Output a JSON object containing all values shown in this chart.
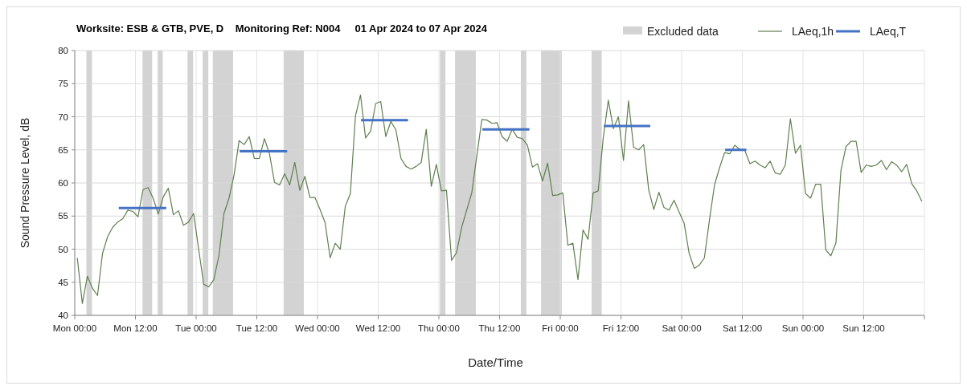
{
  "chart_data": {
    "type": "line",
    "title": "Worksite: ESB & GTB, PVE, D    Monitoring Ref: N004     01 Apr 2024 to 07 Apr 2024",
    "xlabel": "Date/Time",
    "ylabel": "Sound Pressure Level, dB",
    "xlim": [
      "2024-04-01T00:00",
      "2024-04-08T00:00"
    ],
    "ylim": [
      40,
      80
    ],
    "xticks": [
      {
        "value": "2024-04-01T00:00",
        "label": "Mon 00:00"
      },
      {
        "value": "2024-04-01T12:00",
        "label": "Mon 12:00"
      },
      {
        "value": "2024-04-02T00:00",
        "label": "Tue 00:00"
      },
      {
        "value": "2024-04-02T12:00",
        "label": "Tue 12:00"
      },
      {
        "value": "2024-04-03T00:00",
        "label": "Wed 00:00"
      },
      {
        "value": "2024-04-03T12:00",
        "label": "Wed 12:00"
      },
      {
        "value": "2024-04-04T00:00",
        "label": "Thu 00:00"
      },
      {
        "value": "2024-04-04T12:00",
        "label": "Thu 12:00"
      },
      {
        "value": "2024-04-05T00:00",
        "label": "Fri 00:00"
      },
      {
        "value": "2024-04-05T12:00",
        "label": "Fri 12:00"
      },
      {
        "value": "2024-04-06T00:00",
        "label": "Sat 00:00"
      },
      {
        "value": "2024-04-06T12:00",
        "label": "Sat 12:00"
      },
      {
        "value": "2024-04-07T00:00",
        "label": "Sun 00:00"
      },
      {
        "value": "2024-04-07T12:00",
        "label": "Sun 12:00"
      },
      {
        "value": "2024-04-08T00:00",
        "label": null
      }
    ],
    "yticks": [
      40,
      45,
      50,
      55,
      60,
      65,
      70,
      75,
      80
    ],
    "grid": true,
    "legend": "top right",
    "marker": "none",
    "line_style": "solid",
    "bands": [
      {
        "axis": "x",
        "from": "2024-04-01T02:18",
        "to": "2024-04-01T03:24",
        "label": "Excluded data",
        "color": "#d3d3d3"
      },
      {
        "axis": "x",
        "from": "2024-04-01T13:24",
        "to": "2024-04-01T15:18",
        "color": "#d3d3d3"
      },
      {
        "axis": "x",
        "from": "2024-04-01T16:24",
        "to": "2024-04-01T17:24",
        "color": "#d3d3d3"
      },
      {
        "axis": "x",
        "from": "2024-04-01T22:18",
        "to": "2024-04-01T23:24",
        "color": "#d3d3d3"
      },
      {
        "axis": "x",
        "from": "2024-04-02T01:18",
        "to": "2024-04-02T02:24",
        "color": "#d3d3d3"
      },
      {
        "axis": "x",
        "from": "2024-04-02T03:18",
        "to": "2024-04-02T07:18",
        "color": "#d3d3d3"
      },
      {
        "axis": "x",
        "from": "2024-04-02T17:18",
        "to": "2024-04-02T21:18",
        "color": "#d3d3d3"
      },
      {
        "axis": "x",
        "from": "2024-04-04T00:12",
        "to": "2024-04-04T01:18",
        "color": "#d3d3d3"
      },
      {
        "axis": "x",
        "from": "2024-04-04T03:12",
        "to": "2024-04-04T07:18",
        "color": "#d3d3d3"
      },
      {
        "axis": "x",
        "from": "2024-04-04T16:12",
        "to": "2024-04-04T17:18",
        "color": "#d3d3d3"
      },
      {
        "axis": "x",
        "from": "2024-04-04T20:12",
        "to": "2024-04-05T00:18",
        "color": "#d3d3d3"
      },
      {
        "axis": "x",
        "from": "2024-04-05T06:12",
        "to": "2024-04-05T08:12",
        "color": "#d3d3d3"
      }
    ],
    "x": [
      "2024-04-01T00:30",
      "2024-04-01T01:30",
      "2024-04-01T02:30",
      "2024-04-01T03:30",
      "2024-04-01T04:30",
      "2024-04-01T05:30",
      "2024-04-01T06:30",
      "2024-04-01T07:30",
      "2024-04-01T08:30",
      "2024-04-01T09:30",
      "2024-04-01T10:30",
      "2024-04-01T11:30",
      "2024-04-01T12:30",
      "2024-04-01T13:30",
      "2024-04-01T14:30",
      "2024-04-01T15:30",
      "2024-04-01T16:30",
      "2024-04-01T17:30",
      "2024-04-01T18:30",
      "2024-04-01T19:30",
      "2024-04-01T20:30",
      "2024-04-01T21:30",
      "2024-04-01T22:30",
      "2024-04-01T23:30",
      "2024-04-02T00:30",
      "2024-04-02T01:30",
      "2024-04-02T02:30",
      "2024-04-02T03:30",
      "2024-04-02T04:30",
      "2024-04-02T05:30",
      "2024-04-02T06:30",
      "2024-04-02T07:30",
      "2024-04-02T08:30",
      "2024-04-02T09:30",
      "2024-04-02T10:30",
      "2024-04-02T11:30",
      "2024-04-02T12:30",
      "2024-04-02T13:30",
      "2024-04-02T14:30",
      "2024-04-02T15:30",
      "2024-04-02T16:30",
      "2024-04-02T17:30",
      "2024-04-02T18:30",
      "2024-04-02T19:30",
      "2024-04-02T20:30",
      "2024-04-02T21:30",
      "2024-04-02T22:30",
      "2024-04-02T23:30",
      "2024-04-03T00:30",
      "2024-04-03T01:30",
      "2024-04-03T02:30",
      "2024-04-03T03:30",
      "2024-04-03T04:30",
      "2024-04-03T05:30",
      "2024-04-03T06:30",
      "2024-04-03T07:30",
      "2024-04-03T08:30",
      "2024-04-03T09:30",
      "2024-04-03T10:30",
      "2024-04-03T11:30",
      "2024-04-03T12:30",
      "2024-04-03T13:30",
      "2024-04-03T14:30",
      "2024-04-03T15:30",
      "2024-04-03T16:30",
      "2024-04-03T17:30",
      "2024-04-03T18:30",
      "2024-04-03T19:30",
      "2024-04-03T20:30",
      "2024-04-03T21:30",
      "2024-04-03T22:30",
      "2024-04-03T23:30",
      "2024-04-04T00:30",
      "2024-04-04T01:30",
      "2024-04-04T02:30",
      "2024-04-04T03:30",
      "2024-04-04T04:30",
      "2024-04-04T05:30",
      "2024-04-04T06:30",
      "2024-04-04T07:30",
      "2024-04-04T08:30",
      "2024-04-04T09:30",
      "2024-04-04T10:30",
      "2024-04-04T11:30",
      "2024-04-04T12:30",
      "2024-04-04T13:30",
      "2024-04-04T14:30",
      "2024-04-04T15:30",
      "2024-04-04T16:30",
      "2024-04-04T17:30",
      "2024-04-04T18:30",
      "2024-04-04T19:30",
      "2024-04-04T20:30",
      "2024-04-04T21:30",
      "2024-04-04T22:30",
      "2024-04-04T23:30",
      "2024-04-05T00:30",
      "2024-04-05T01:30",
      "2024-04-05T02:30",
      "2024-04-05T03:30",
      "2024-04-05T04:30",
      "2024-04-05T05:30",
      "2024-04-05T06:30",
      "2024-04-05T07:30",
      "2024-04-05T08:30",
      "2024-04-05T09:30",
      "2024-04-05T10:30",
      "2024-04-05T11:30",
      "2024-04-05T12:30",
      "2024-04-05T13:30",
      "2024-04-05T14:30",
      "2024-04-05T15:30",
      "2024-04-05T16:30",
      "2024-04-05T17:30",
      "2024-04-05T18:30",
      "2024-04-05T19:30",
      "2024-04-05T20:30",
      "2024-04-05T21:30",
      "2024-04-05T22:30",
      "2024-04-05T23:30",
      "2024-04-06T00:30",
      "2024-04-06T01:30",
      "2024-04-06T02:30",
      "2024-04-06T03:30",
      "2024-04-06T04:30",
      "2024-04-06T05:30",
      "2024-04-06T06:30",
      "2024-04-06T07:30",
      "2024-04-06T08:30",
      "2024-04-06T09:30",
      "2024-04-06T10:30",
      "2024-04-06T11:30",
      "2024-04-06T12:30",
      "2024-04-06T13:30",
      "2024-04-06T14:30",
      "2024-04-06T15:30",
      "2024-04-06T16:30",
      "2024-04-06T17:30",
      "2024-04-06T18:30",
      "2024-04-06T19:30",
      "2024-04-06T20:30",
      "2024-04-06T21:30",
      "2024-04-06T22:30",
      "2024-04-06T23:30",
      "2024-04-07T00:30",
      "2024-04-07T01:30",
      "2024-04-07T02:30",
      "2024-04-07T03:30",
      "2024-04-07T04:30",
      "2024-04-07T05:30",
      "2024-04-07T06:30",
      "2024-04-07T07:30",
      "2024-04-07T08:30",
      "2024-04-07T09:30",
      "2024-04-07T10:30",
      "2024-04-07T11:30",
      "2024-04-07T12:30",
      "2024-04-07T13:30",
      "2024-04-07T14:30",
      "2024-04-07T15:30",
      "2024-04-07T16:30",
      "2024-04-07T17:30",
      "2024-04-07T18:30",
      "2024-04-07T19:30",
      "2024-04-07T20:30",
      "2024-04-07T21:30",
      "2024-04-07T22:30",
      "2024-04-07T23:30"
    ],
    "series": [
      {
        "name": "LAeq,1h",
        "color": "#5f7f4f",
        "values": [
          48.7,
          41.8,
          45.9,
          44.1,
          43.0,
          49.4,
          51.9,
          53.3,
          54.1,
          54.6,
          55.9,
          55.7,
          54.9,
          59.0,
          59.3,
          57.7,
          55.3,
          57.9,
          59.2,
          55.2,
          55.8,
          53.6,
          54.1,
          55.4,
          50.0,
          44.7,
          44.3,
          45.4,
          49.0,
          55.4,
          57.7,
          61.2,
          66.4,
          65.8,
          67.0,
          63.7,
          63.7,
          66.7,
          64.4,
          60.1,
          59.7,
          61.4,
          59.7,
          63.1,
          58.9,
          61.0,
          57.8,
          57.8,
          56.0,
          54.0,
          48.7,
          50.9,
          50.0,
          56.5,
          58.4,
          70.1,
          73.3,
          66.8,
          67.8,
          72.0,
          72.3,
          67.0,
          69.3,
          68.0,
          63.7,
          62.5,
          62.1,
          62.5,
          63.1,
          68.1,
          59.5,
          62.8,
          58.8,
          58.9,
          48.3,
          49.5,
          53.3,
          55.9,
          58.5,
          64.1,
          69.6,
          69.5,
          69.0,
          69.1,
          67.0,
          66.3,
          68.1,
          66.9,
          66.7,
          65.7,
          62.4,
          62.9,
          60.3,
          63.0,
          58.1,
          58.2,
          58.5,
          50.6,
          50.9,
          45.4,
          52.9,
          51.5,
          58.5,
          58.8,
          66.8,
          72.5,
          68.2,
          70.0,
          63.4,
          72.4,
          65.4,
          65.0,
          65.8,
          58.9,
          56.0,
          58.6,
          56.3,
          55.9,
          57.4,
          55.6,
          53.9,
          49.3,
          47.1,
          47.6,
          48.7,
          54.4,
          59.7,
          62.3,
          64.6,
          64.4,
          65.7,
          65.1,
          64.9,
          62.9,
          63.3,
          62.7,
          62.3,
          63.3,
          61.5,
          61.3,
          62.7,
          69.7,
          64.5,
          65.7,
          58.4,
          57.7,
          59.8,
          59.8,
          49.9,
          49.0,
          50.9,
          61.9,
          65.5,
          66.3,
          66.3,
          61.6,
          62.7,
          62.5,
          62.7,
          63.4,
          62.0,
          63.2,
          62.7,
          61.7,
          62.8,
          59.9,
          58.8,
          57.2
        ]
      },
      {
        "name": "LAeq,T",
        "color": "#4472c4",
        "x": [
          "2024-04-01T08:42",
          "2024-04-01T18:06",
          "2024-04-01T20:00",
          "2024-04-02T08:36",
          "2024-04-02T18:00",
          "2024-04-02T20:00",
          "2024-04-03T08:36",
          "2024-04-03T17:54",
          "2024-04-03T20:00",
          "2024-04-04T08:36",
          "2024-04-04T17:54",
          "2024-04-04T20:00",
          "2024-04-05T08:36",
          "2024-04-05T17:48",
          "2024-04-05T20:00",
          "2024-04-06T08:36",
          "2024-04-06T12:48"
        ],
        "values": [
          56.2,
          56.2,
          null,
          64.8,
          64.8,
          null,
          69.5,
          69.5,
          null,
          68.1,
          68.1,
          null,
          68.6,
          68.6,
          null,
          65.0,
          65.0
        ]
      }
    ]
  }
}
